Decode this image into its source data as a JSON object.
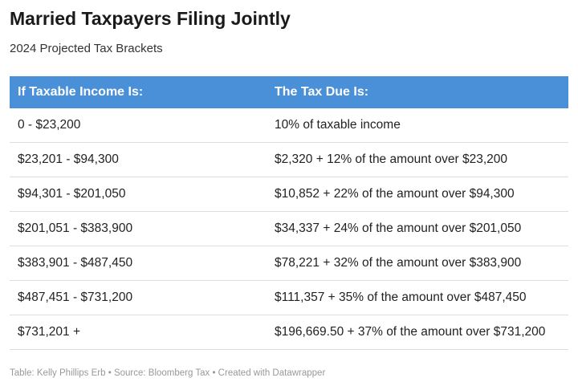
{
  "header": {
    "title": "Married Taxpayers Filing Jointly",
    "subtitle": "2024 Projected Tax Brackets"
  },
  "table": {
    "columns": [
      "If Taxable Income Is:",
      "The Tax Due Is:"
    ],
    "rows": [
      [
        "0 - $23,200",
        "10% of taxable income"
      ],
      [
        "$23,201 - $94,300",
        "$2,320 + 12% of the amount over $23,200"
      ],
      [
        "$94,301 - $201,050",
        "$10,852 + 22% of the amount over $94,300"
      ],
      [
        "$201,051 - $383,900",
        "$34,337 + 24% of the amount over $201,050"
      ],
      [
        "$383,901 - $487,450",
        "$78,221 + 32% of the amount over $383,900"
      ],
      [
        "$487,451 - $731,200",
        "$111,357 + 35% of the amount over $487,450"
      ],
      [
        "$731,201 +",
        "$196,669.50 + 37% of the amount over $731,200"
      ]
    ]
  },
  "footer": "Table: Kelly Phillips Erb • Source: Bloomberg Tax • Created with Datawrapper"
}
